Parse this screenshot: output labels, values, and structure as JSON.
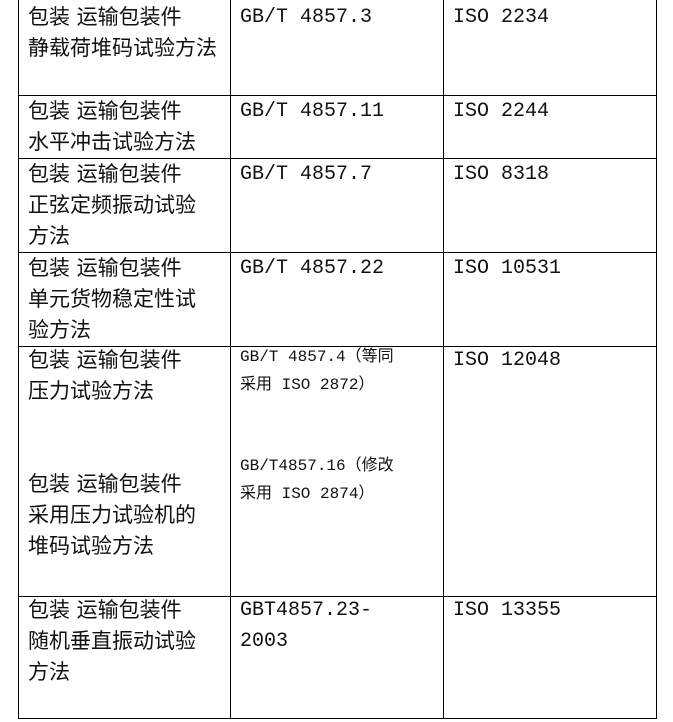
{
  "rows": [
    {
      "name": "包装 运输包装件\n静载荷堆码试验方法",
      "gb": "GB/T 4857.3",
      "iso": "ISO 2234"
    },
    {
      "name": "包装 运输包装件\n水平冲击试验方法",
      "gb": "GB/T 4857.11",
      "iso": "ISO 2244"
    },
    {
      "name": "包装 运输包装件\n正弦定频振动试验\n方法",
      "gb": "GB/T 4857.7",
      "iso": "ISO 8318"
    },
    {
      "name": "包装 运输包装件\n单元货物稳定性试\n验方法",
      "gb": "GB/T 4857.22",
      "iso": "ISO 10531"
    },
    {
      "name": "包装 运输包装件\n压力试验方法",
      "name2": "包装 运输包装件\n采用压力试验机的\n堆码试验方法",
      "gb": "GB/T 4857.4（等同\n采用 ISO 2872）",
      "gb2": "GB/T4857.16（修改\n采用 ISO 2874）",
      "iso": "ISO 12048"
    },
    {
      "name": "包装 运输包装件\n随机垂直振动试验\n方法",
      "gb": "GBT4857.23-\n2003",
      "iso": "ISO 13355"
    }
  ]
}
